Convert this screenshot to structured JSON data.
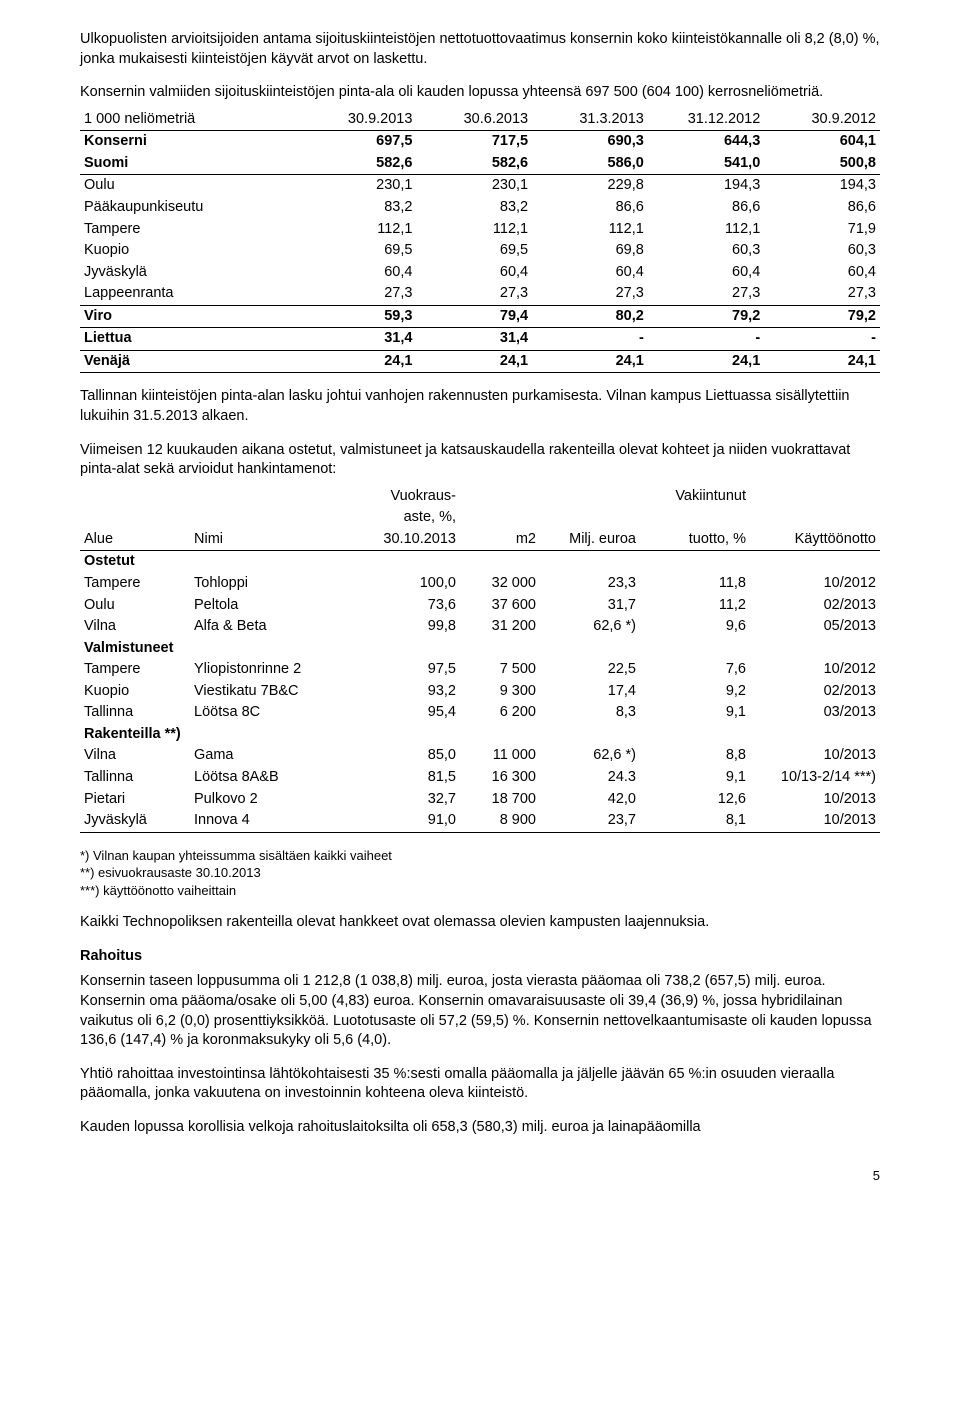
{
  "intro_p1": "Ulkopuolisten arvioitsijoiden antama sijoituskiinteistöjen nettotuottovaatimus konsernin koko kiinteistökannalle oli 8,2 (8,0) %, jonka mukaisesti kiinteistöjen käyvät arvot on laskettu.",
  "intro_p2": "Konsernin valmiiden sijoituskiinteistöjen pinta-ala oli kauden lopussa yhteensä 697 500 (604 100) kerrosneliömetriä.",
  "t1": {
    "head_label": "1 000 neliömetriä",
    "cols": [
      "30.9.2013",
      "30.6.2013",
      "31.3.2013",
      "31.12.2012",
      "30.9.2012"
    ],
    "rows": [
      {
        "label": "Konserni",
        "bold": true,
        "vals": [
          "697,5",
          "717,5",
          "690,3",
          "644,3",
          "604,1"
        ]
      },
      {
        "label": "Suomi",
        "bold": true,
        "vals": [
          "582,6",
          "582,6",
          "586,0",
          "541,0",
          "500,8"
        ],
        "under": true
      },
      {
        "label": "Oulu",
        "vals": [
          "230,1",
          "230,1",
          "229,8",
          "194,3",
          "194,3"
        ]
      },
      {
        "label": "Pääkaupunkiseutu",
        "vals": [
          "83,2",
          "83,2",
          "86,6",
          "86,6",
          "86,6"
        ]
      },
      {
        "label": "Tampere",
        "vals": [
          "112,1",
          "112,1",
          "112,1",
          "112,1",
          "71,9"
        ]
      },
      {
        "label": "Kuopio",
        "vals": [
          "69,5",
          "69,5",
          "69,8",
          "60,3",
          "60,3"
        ]
      },
      {
        "label": "Jyväskylä",
        "vals": [
          "60,4",
          "60,4",
          "60,4",
          "60,4",
          "60,4"
        ]
      },
      {
        "label": "Lappeenranta",
        "vals": [
          "27,3",
          "27,3",
          "27,3",
          "27,3",
          "27,3"
        ],
        "under": true
      },
      {
        "label": "Viro",
        "bold": true,
        "vals": [
          "59,3",
          "79,4",
          "80,2",
          "79,2",
          "79,2"
        ],
        "under": true
      },
      {
        "label": "Liettua",
        "bold": true,
        "vals": [
          "31,4",
          "31,4",
          "-",
          "-",
          "-"
        ],
        "under": true
      },
      {
        "label": "Venäjä",
        "bold": true,
        "vals": [
          "24,1",
          "24,1",
          "24,1",
          "24,1",
          "24,1"
        ],
        "under": true
      }
    ]
  },
  "mid_p1": "Tallinnan kiinteistöjen pinta-alan lasku johtui vanhojen rakennusten purkamisesta. Vilnan kampus Liettuassa sisällytettiin lukuihin 31.5.2013 alkaen.",
  "mid_p2": "Viimeisen 12 kuukauden aikana ostetut, valmistuneet ja katsauskaudella rakenteilla olevat kohteet ja niiden vuokrattavat pinta-alat sekä arvioidut hankintamenot:",
  "t2": {
    "head": {
      "alue": "Alue",
      "nimi": "Nimi",
      "vuokraus_l1": "Vuokraus-",
      "vuokraus_l2": "aste, %,",
      "vuokraus_l3": "30.10.2013",
      "m2": "m2",
      "euroa": "Milj. euroa",
      "vak_l1": "Vakiintunut",
      "vak_l2": "tuotto, %",
      "ko": "Käyttöönotto"
    },
    "sections": [
      {
        "title": "Ostetut",
        "rows": [
          {
            "c": [
              "Tampere",
              "Tohloppi",
              "100,0",
              "32 000",
              "23,3",
              "11,8",
              "10/2012"
            ]
          },
          {
            "c": [
              "Oulu",
              "Peltola",
              "73,6",
              "37 600",
              "31,7",
              "11,2",
              "02/2013"
            ]
          },
          {
            "c": [
              "Vilna",
              "Alfa & Beta",
              "99,8",
              "31 200",
              "62,6 *)",
              "9,6",
              "05/2013"
            ]
          }
        ]
      },
      {
        "title": "Valmistuneet",
        "rows": [
          {
            "c": [
              "Tampere",
              "Yliopistonrinne 2",
              "97,5",
              "7 500",
              "22,5",
              "7,6",
              "10/2012"
            ]
          },
          {
            "c": [
              "Kuopio",
              "Viestikatu 7B&C",
              "93,2",
              "9 300",
              "17,4",
              "9,2",
              "02/2013"
            ]
          },
          {
            "c": [
              "Tallinna",
              "Löötsa 8C",
              "95,4",
              "6 200",
              "8,3",
              "9,1",
              "03/2013"
            ]
          }
        ]
      },
      {
        "title": "Rakenteilla **)",
        "rows": [
          {
            "c": [
              "Vilna",
              "Gama",
              "85,0",
              "11 000",
              "62,6 *)",
              "8,8",
              "10/2013"
            ]
          },
          {
            "c": [
              "Tallinna",
              "Löötsa 8A&B",
              "81,5",
              "16 300",
              "24.3",
              "9,1",
              "10/13-2/14 ***)"
            ]
          },
          {
            "c": [
              "Pietari",
              "Pulkovo 2",
              "32,7",
              "18 700",
              "42,0",
              "12,6",
              "10/2013"
            ]
          },
          {
            "c": [
              "Jyväskylä",
              "Innova 4",
              "91,0",
              "8 900",
              "23,7",
              "8,1",
              "10/2013"
            ],
            "under": true
          }
        ]
      }
    ]
  },
  "footnotes": [
    "*) Vilnan kaupan yhteissumma sisältäen kaikki vaiheet",
    "**) esivuokrausaste 30.10.2013",
    "***) käyttöönotto vaiheittain"
  ],
  "after_p1": "Kaikki Technopoliksen rakenteilla olevat hankkeet ovat olemassa olevien kampusten laajennuksia.",
  "rahoitus_h": "Rahoitus",
  "rahoitus_p1": "Konsernin taseen loppusumma oli 1 212,8 (1 038,8) milj. euroa, josta vierasta pääomaa oli 738,2 (657,5) milj. euroa. Konsernin oma pääoma/osake oli 5,00 (4,83) euroa. Konsernin omavaraisuusaste oli 39,4 (36,9) %, jossa hybridilainan vaikutus oli 6,2 (0,0) prosenttiyksikköä. Luototusaste oli 57,2 (59,5) %. Konsernin nettovelkaantumisaste oli kauden lopussa 136,6 (147,4) % ja koronmaksukyky oli 5,6 (4,0).",
  "rahoitus_p2": "Yhtiö rahoittaa investointinsa lähtökohtaisesti 35 %:sesti omalla pääomalla ja jäljelle jäävän 65 %:in osuuden vieraalla pääomalla, jonka vakuutena on investoinnin kohteena oleva kiinteistö.",
  "rahoitus_p3": "Kauden lopussa korollisia velkoja rahoituslaitoksilta oli 658,3 (580,3) milj. euroa ja lainapääomilla",
  "page_number": "5"
}
